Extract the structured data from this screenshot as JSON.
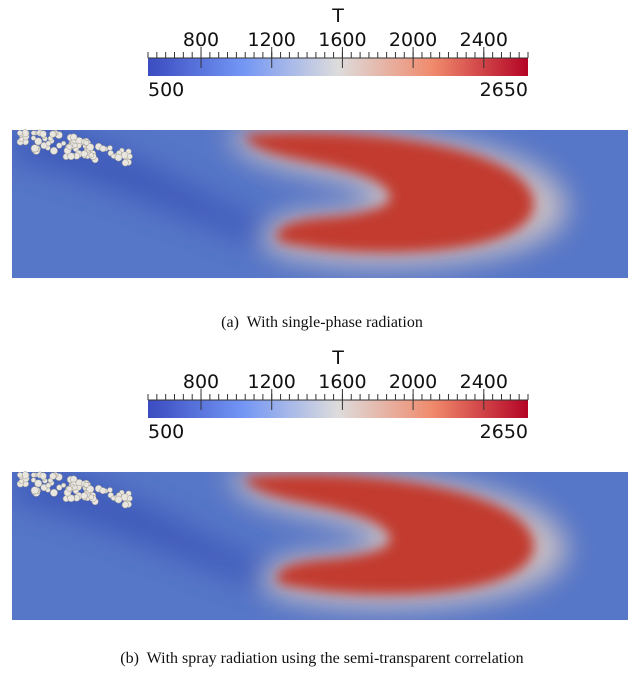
{
  "panels": [
    {
      "colorbar": {
        "title": "T",
        "ticks": [
          800,
          1200,
          1600,
          2000,
          2400
        ],
        "min": 500,
        "max": 2650
      },
      "caption": "(a)  With single-phase radiation"
    },
    {
      "colorbar": {
        "title": "T",
        "ticks": [
          800,
          1200,
          1600,
          2000,
          2400
        ],
        "min": 500,
        "max": 2650
      },
      "caption": "(b)  With spray radiation using the semi-transparent correlation"
    }
  ]
}
